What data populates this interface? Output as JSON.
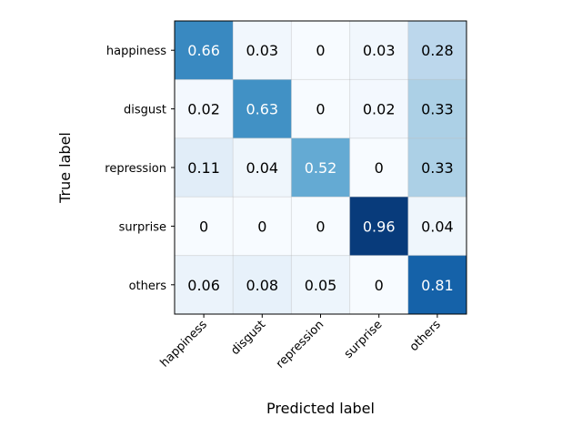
{
  "chart_data": {
    "type": "heatmap",
    "title": "",
    "xlabel": "Predicted label",
    "ylabel": "True label",
    "categories": [
      "happiness",
      "disgust",
      "repression",
      "surprise",
      "others"
    ],
    "x_categories": [
      "happiness",
      "disgust",
      "repression",
      "surprise",
      "others"
    ],
    "y_categories": [
      "happiness",
      "disgust",
      "repression",
      "surprise",
      "others"
    ],
    "values": [
      [
        0.66,
        0.03,
        0,
        0.03,
        0.28
      ],
      [
        0.02,
        0.63,
        0,
        0.02,
        0.33
      ],
      [
        0.11,
        0.04,
        0.52,
        0,
        0.33
      ],
      [
        0,
        0,
        0,
        0.96,
        0.04
      ],
      [
        0.06,
        0.08,
        0.05,
        0,
        0.81
      ]
    ],
    "value_labels": [
      [
        "0.66",
        "0.03",
        "0",
        "0.03",
        "0.28"
      ],
      [
        "0.02",
        "0.63",
        "0",
        "0.02",
        "0.33"
      ],
      [
        "0.11",
        "0.04",
        "0.52",
        "0",
        "0.33"
      ],
      [
        "0",
        "0",
        "0",
        "0.96",
        "0.04"
      ],
      [
        "0.06",
        "0.08",
        "0.05",
        "0",
        "0.81"
      ]
    ],
    "colormap": "Blues",
    "value_range": [
      0,
      1
    ],
    "text_threshold": 0.5,
    "text_color_light": "#ffffff",
    "text_color_dark": "#000000",
    "x_tick_rotation": 45,
    "grid": true,
    "legend": "none"
  }
}
